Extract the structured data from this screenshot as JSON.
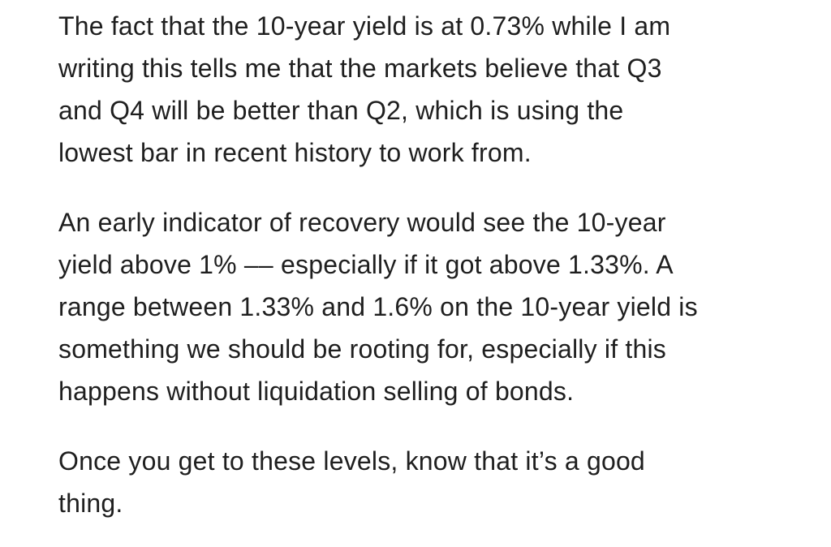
{
  "document": {
    "background_color": "#ffffff",
    "text_color": "#1f1f1f",
    "paragraphs": [
      {
        "lines": [
          "The fact that the 10-year yield is at 0.73% while I am",
          "writing this tells me that the markets believe that Q3",
          "and Q4 will be better than Q2, which is using the",
          "lowest bar in recent history to work from."
        ]
      },
      {
        "lines": [
          "An early indicator of recovery would see the 10-year",
          "yield above 1% –– especially if it got above 1.33%. A",
          "range between 1.33% and 1.6% on the 10-year yield is",
          "something we should be rooting for, especially if this",
          "happens without liquidation selling of bonds."
        ]
      },
      {
        "lines": [
          "Once you get to these levels, know that it’s a good",
          "thing."
        ]
      }
    ]
  }
}
